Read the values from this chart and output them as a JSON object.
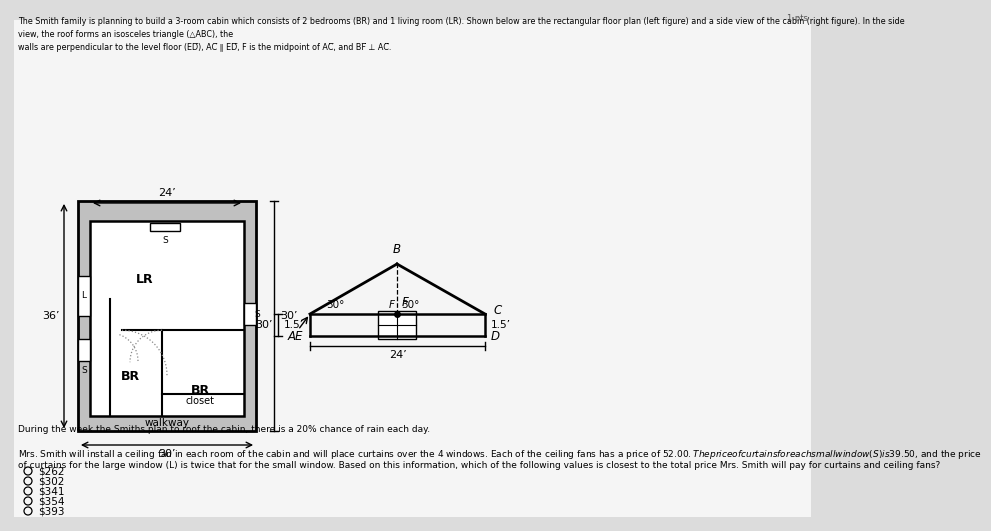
{
  "bg_color": "#dcdcdc",
  "inner_bg": "#f5f5f5",
  "line_color": "#000000",
  "text_color": "#000000",
  "dashed_color": "#888888",
  "header": [
    "The Smith family is planning to build a 3-room cabin which consists of 2 bedrooms (BR) and 1 living room (LR). Shown below are the rectangular floor plan (left figure) and a side view of the cabin (right figure). In the side",
    "view, the roof forms an isosceles triangle (△ABC), the",
    "walls are perpendicular to the level floor (ED̅), AC̅ ∥ ED̅, F is the midpoint of AC̅, and BF̅ ⊥ AC̅."
  ],
  "rain_text": "During the week the Smiths plan to roof the cabin, there is a 20% chance of rain each day.",
  "q_text_line1": "Mrs. Smith will install a ceiling fan in each room of the cabin and will place curtains over the 4 windows. Each of the ceiling fans has a price of $52.00. The price of curtains for each small window (S) is $39.50, and the price",
  "q_text_line2": "of curtains for the large window (L) is twice that for the small window. Based on this information, which of the following values is closest to the total price Mrs. Smith will pay for curtains and ceiling fans?",
  "choices": [
    "$262",
    "$302",
    "$341",
    "$354",
    "$393"
  ],
  "page_num": "1 pts"
}
